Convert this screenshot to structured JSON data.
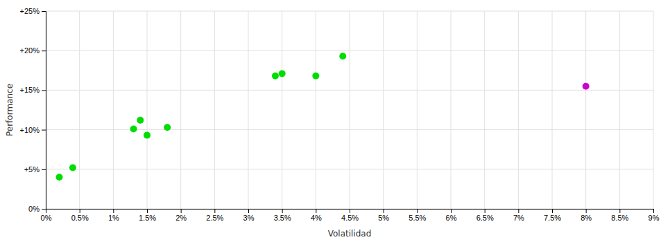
{
  "chart_data": {
    "type": "scatter",
    "xlabel": "Volatilidad",
    "ylabel": "Performance",
    "xlim": [
      0,
      0.09
    ],
    "ylim": [
      0,
      0.25
    ],
    "xticks": [
      {
        "value": 0,
        "label": "0%"
      },
      {
        "value": 0.005,
        "label": "0.5%"
      },
      {
        "value": 0.01,
        "label": "1%"
      },
      {
        "value": 0.015,
        "label": "1.5%"
      },
      {
        "value": 0.02,
        "label": "2%"
      },
      {
        "value": 0.025,
        "label": "2.5%"
      },
      {
        "value": 0.03,
        "label": "3%"
      },
      {
        "value": 0.035,
        "label": "3.5%"
      },
      {
        "value": 0.04,
        "label": "4%"
      },
      {
        "value": 0.045,
        "label": "4.5%"
      },
      {
        "value": 0.05,
        "label": "5%"
      },
      {
        "value": 0.055,
        "label": "5.5%"
      },
      {
        "value": 0.06,
        "label": "6%"
      },
      {
        "value": 0.065,
        "label": "6.5%"
      },
      {
        "value": 0.07,
        "label": "7%"
      },
      {
        "value": 0.075,
        "label": "7.5%"
      },
      {
        "value": 0.08,
        "label": "8%"
      },
      {
        "value": 0.085,
        "label": "8.5%"
      },
      {
        "value": 0.09,
        "label": "9%"
      }
    ],
    "yticks": [
      {
        "value": 0,
        "label": "0%"
      },
      {
        "value": 0.05,
        "label": "+5%"
      },
      {
        "value": 0.1,
        "label": "+10%"
      },
      {
        "value": 0.15,
        "label": "+15%"
      },
      {
        "value": 0.2,
        "label": "+20%"
      },
      {
        "value": 0.25,
        "label": "+25%"
      }
    ],
    "grid": true,
    "series": [
      {
        "color": "#00dd00",
        "x": [
          0.002,
          0.004,
          0.013,
          0.014,
          0.015,
          0.018,
          0.034,
          0.035,
          0.04,
          0.044
        ],
        "values": [
          0.04,
          0.052,
          0.101,
          0.112,
          0.093,
          0.103,
          0.168,
          0.171,
          0.168,
          0.193
        ]
      },
      {
        "color": "#cc00cc",
        "x": [
          0.08
        ],
        "values": [
          0.155
        ]
      }
    ]
  }
}
